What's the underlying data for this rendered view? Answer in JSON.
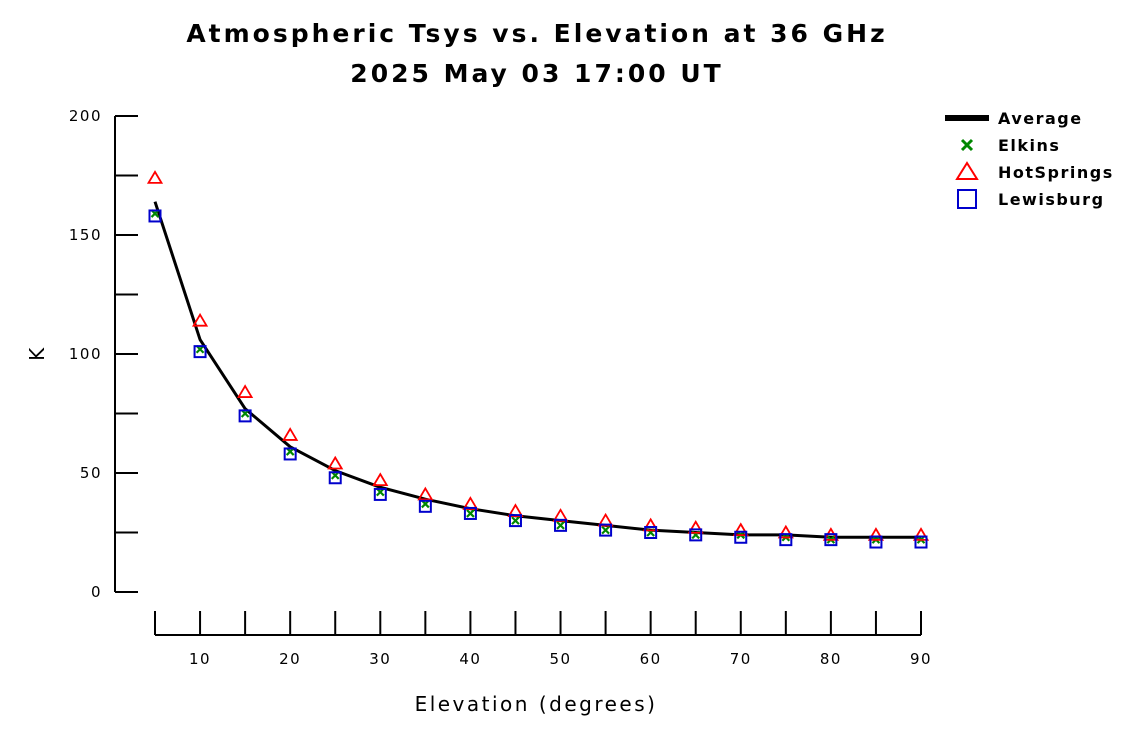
{
  "chart_data": {
    "type": "line",
    "title": "Atmospheric Tsys vs. Elevation at 36 GHz",
    "subtitle": "2025 May 03 17:00 UT",
    "xlabel": "Elevation (degrees)",
    "ylabel": "K",
    "xlim": [
      5,
      90
    ],
    "ylim": [
      0,
      200
    ],
    "x_ticks": [
      10,
      20,
      30,
      40,
      50,
      60,
      70,
      80,
      90
    ],
    "y_ticks": [
      0,
      50,
      100,
      150,
      200
    ],
    "x": [
      5,
      10,
      15,
      20,
      25,
      30,
      35,
      40,
      45,
      50,
      55,
      60,
      65,
      70,
      75,
      80,
      85,
      90
    ],
    "grid": false,
    "legend_position": "top-right",
    "series": [
      {
        "name": "Average",
        "style": "line",
        "color": "#000000",
        "values": [
          164,
          106,
          77,
          61,
          51,
          44,
          39,
          35,
          32,
          30,
          28,
          26,
          25,
          24,
          24,
          23,
          23,
          23
        ]
      },
      {
        "name": "Elkins",
        "style": "x-marker",
        "color": "#008800",
        "values": [
          159,
          102,
          75,
          59,
          49,
          42,
          37,
          33,
          30,
          28,
          26,
          25,
          24,
          24,
          23,
          22,
          22,
          22
        ]
      },
      {
        "name": "HotSprings",
        "style": "triangle-marker",
        "color": "#ff0000",
        "values": [
          174,
          114,
          84,
          66,
          54,
          47,
          41,
          37,
          34,
          32,
          30,
          28,
          27,
          26,
          25,
          24,
          24,
          24
        ]
      },
      {
        "name": "Lewisburg",
        "style": "square-marker",
        "color": "#0000cc",
        "values": [
          158,
          101,
          74,
          58,
          48,
          41,
          36,
          33,
          30,
          28,
          26,
          25,
          24,
          23,
          22,
          22,
          21,
          21
        ]
      }
    ]
  }
}
